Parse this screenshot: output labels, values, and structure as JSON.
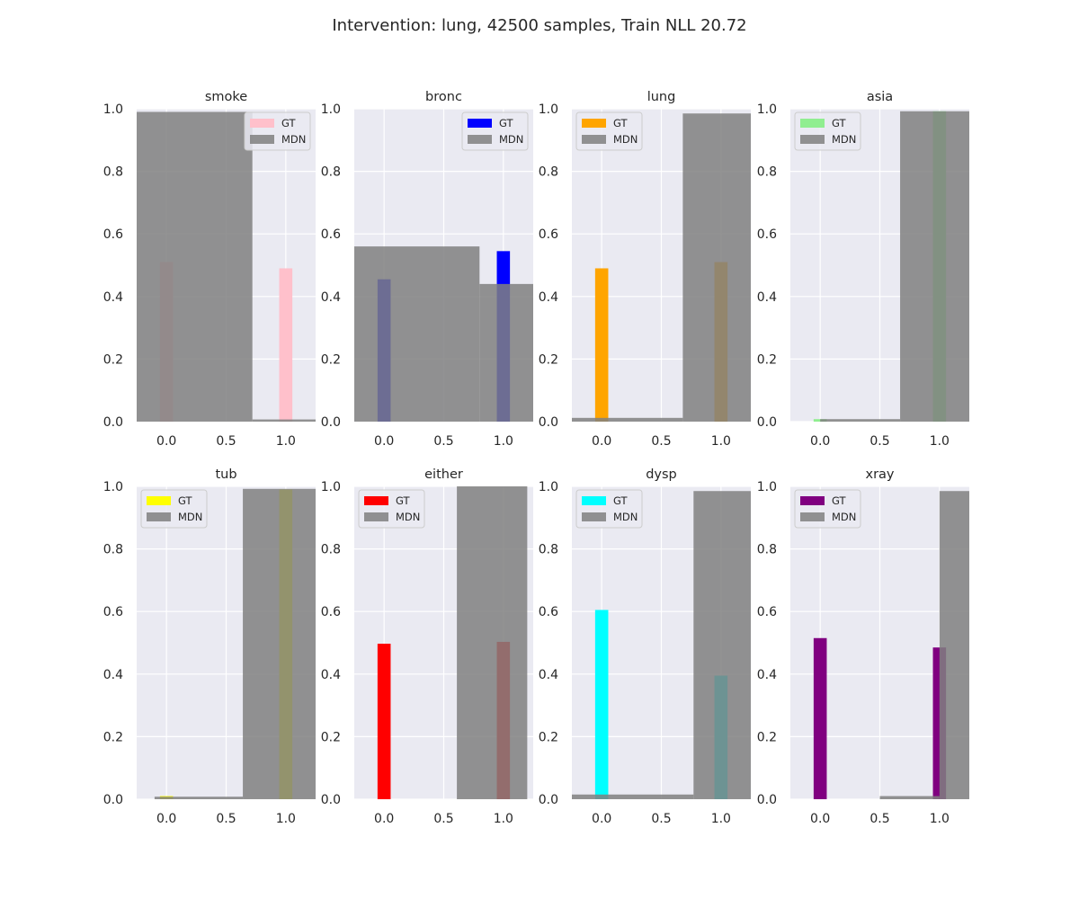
{
  "figure": {
    "title": "Intervention: lung, 42500 samples, Train NLL 20.72"
  },
  "chart_data": [
    {
      "type": "bar",
      "title": "smoke",
      "gt_color": "#ffc0cb",
      "legend": [
        "GT",
        "MDN"
      ],
      "legend_loc": "upper right",
      "gt": {
        "x": [
          0,
          1
        ],
        "values": [
          0.51,
          0.49
        ]
      },
      "mdn": [
        {
          "x0": -0.25,
          "x1": 0.72,
          "value": 0.99
        },
        {
          "x0": 0.72,
          "x1": 1.25,
          "value": 0.007
        }
      ],
      "xlim": [
        -0.25,
        1.25
      ],
      "ylim": [
        0,
        1.0
      ],
      "xticks": [
        "0.0",
        "0.5",
        "1.0"
      ],
      "yticks": [
        "0.0",
        "0.2",
        "0.4",
        "0.6",
        "0.8",
        "1.0"
      ]
    },
    {
      "type": "bar",
      "title": "bronc",
      "gt_color": "#0000ff",
      "legend": [
        "GT",
        "MDN"
      ],
      "legend_loc": "upper right",
      "gt": {
        "x": [
          0,
          1
        ],
        "values": [
          0.455,
          0.545
        ]
      },
      "mdn": [
        {
          "x0": -0.25,
          "x1": 0.8,
          "value": 0.56
        },
        {
          "x0": 0.8,
          "x1": 1.25,
          "value": 0.44
        }
      ],
      "xlim": [
        -0.25,
        1.25
      ],
      "ylim": [
        0,
        1.0
      ],
      "xticks": [
        "0.0",
        "0.5",
        "1.0"
      ],
      "yticks": [
        "0.0",
        "0.2",
        "0.4",
        "0.6",
        "0.8",
        "1.0"
      ]
    },
    {
      "type": "bar",
      "title": "lung",
      "gt_color": "#ffa500",
      "legend": [
        "GT",
        "MDN"
      ],
      "legend_loc": "upper left",
      "gt": {
        "x": [
          0,
          1
        ],
        "values": [
          0.49,
          0.51
        ]
      },
      "mdn": [
        {
          "x0": -0.25,
          "x1": 0.68,
          "value": 0.012
        },
        {
          "x0": 0.68,
          "x1": 1.25,
          "value": 0.985
        }
      ],
      "xlim": [
        -0.25,
        1.25
      ],
      "ylim": [
        0,
        1.0
      ],
      "xticks": [
        "0.0",
        "0.5",
        "1.0"
      ],
      "yticks": [
        "0.0",
        "0.2",
        "0.4",
        "0.6",
        "0.8",
        "1.0"
      ]
    },
    {
      "type": "bar",
      "title": "asia",
      "gt_color": "#90ee90",
      "legend": [
        "GT",
        "MDN"
      ],
      "legend_loc": "upper left",
      "gt": {
        "x": [
          0,
          1
        ],
        "values": [
          0.008,
          0.992
        ]
      },
      "mdn": [
        {
          "x0": 0.0,
          "x1": 0.67,
          "value": 0.008
        },
        {
          "x0": 0.67,
          "x1": 1.25,
          "value": 0.992
        }
      ],
      "xlim": [
        -0.25,
        1.25
      ],
      "ylim": [
        0,
        1.0
      ],
      "xticks": [
        "0.0",
        "0.5",
        "1.0"
      ],
      "yticks": [
        "0.0",
        "0.2",
        "0.4",
        "0.6",
        "0.8",
        "1.0"
      ]
    },
    {
      "type": "bar",
      "title": "tub",
      "gt_color": "#ffff00",
      "legend": [
        "GT",
        "MDN"
      ],
      "legend_loc": "upper left",
      "gt": {
        "x": [
          0,
          1
        ],
        "values": [
          0.01,
          0.99
        ]
      },
      "mdn": [
        {
          "x0": -0.1,
          "x1": 0.64,
          "value": 0.008
        },
        {
          "x0": 0.64,
          "x1": 1.25,
          "value": 0.992
        }
      ],
      "xlim": [
        -0.25,
        1.25
      ],
      "ylim": [
        0,
        1.0
      ],
      "xticks": [
        "0.0",
        "0.5",
        "1.0"
      ],
      "yticks": [
        "0.0",
        "0.2",
        "0.4",
        "0.6",
        "0.8",
        "1.0"
      ]
    },
    {
      "type": "bar",
      "title": "either",
      "gt_color": "#ff0000",
      "legend": [
        "GT",
        "MDN"
      ],
      "legend_loc": "upper left",
      "gt": {
        "x": [
          0,
          1
        ],
        "values": [
          0.497,
          0.503
        ]
      },
      "mdn": [
        {
          "x0": 0.61,
          "x1": 1.2,
          "value": 1.0
        }
      ],
      "xlim": [
        -0.25,
        1.25
      ],
      "ylim": [
        0,
        1.0
      ],
      "xticks": [
        "0.0",
        "0.5",
        "1.0"
      ],
      "yticks": [
        "0.0",
        "0.2",
        "0.4",
        "0.6",
        "0.8",
        "1.0"
      ]
    },
    {
      "type": "bar",
      "title": "dysp",
      "gt_color": "#00ffff",
      "legend": [
        "GT",
        "MDN"
      ],
      "legend_loc": "upper left",
      "gt": {
        "x": [
          0,
          1
        ],
        "values": [
          0.605,
          0.395
        ]
      },
      "mdn": [
        {
          "x0": -0.25,
          "x1": 0.77,
          "value": 0.015
        },
        {
          "x0": 0.77,
          "x1": 1.25,
          "value": 0.985
        }
      ],
      "xlim": [
        -0.25,
        1.25
      ],
      "ylim": [
        0,
        1.0
      ],
      "xticks": [
        "0.0",
        "0.5",
        "1.0"
      ],
      "yticks": [
        "0.0",
        "0.2",
        "0.4",
        "0.6",
        "0.8",
        "1.0"
      ]
    },
    {
      "type": "bar",
      "title": "xray",
      "gt_color": "#800080",
      "legend": [
        "GT",
        "MDN"
      ],
      "legend_loc": "upper left",
      "gt": {
        "x": [
          0,
          1
        ],
        "values": [
          0.515,
          0.485
        ]
      },
      "mdn": [
        {
          "x0": 0.5,
          "x1": 1.0,
          "value": 0.01
        },
        {
          "x0": 1.0,
          "x1": 1.25,
          "value": 0.985
        }
      ],
      "xlim": [
        -0.25,
        1.25
      ],
      "ylim": [
        0,
        1.0
      ],
      "xticks": [
        "0.0",
        "0.5",
        "1.0"
      ],
      "yticks": [
        "0.0",
        "0.2",
        "0.4",
        "0.6",
        "0.8",
        "1.0"
      ]
    }
  ],
  "styles": {
    "axes_bg": "#eaeaf2",
    "grid": "#ffffff",
    "mdn_color": "#808080",
    "mdn_alpha": 0.85,
    "legend_bg": "#eaeaf2",
    "legend_border": "#cccccc"
  }
}
